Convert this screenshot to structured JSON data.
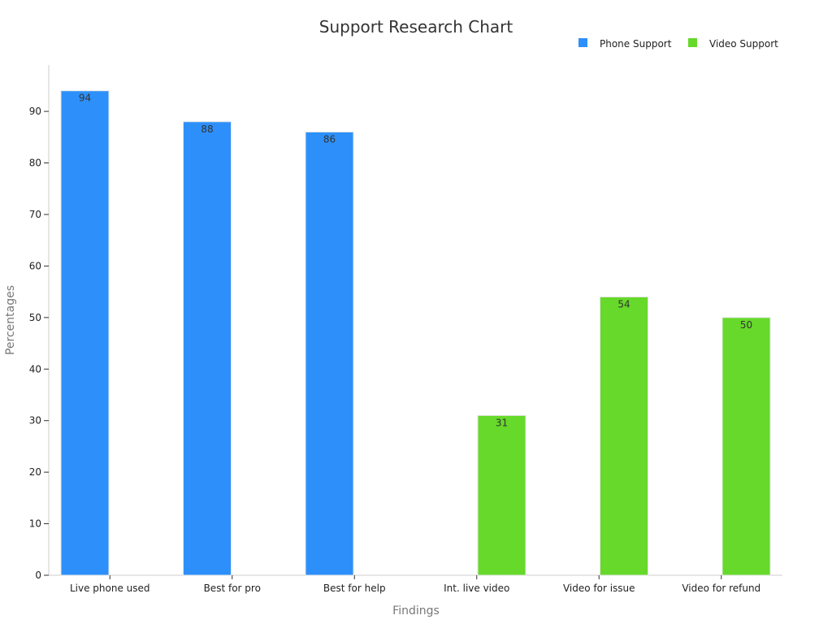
{
  "chart_data": {
    "type": "bar",
    "title": "Support Research Chart",
    "xlabel": "Findings",
    "ylabel": "Percentages",
    "ylim": [
      0,
      99
    ],
    "yticks": [
      0,
      10,
      20,
      30,
      40,
      50,
      60,
      70,
      80,
      90
    ],
    "categories": [
      "Live phone used",
      "Best for pro",
      "Best for help",
      "Int. live video",
      "Video for issue",
      "Video for refund"
    ],
    "series": [
      {
        "name": "Phone Support",
        "color": "#2d90fa",
        "values": [
          94,
          88,
          86,
          null,
          null,
          null
        ]
      },
      {
        "name": "Video Support",
        "color": "#66d92a",
        "values": [
          null,
          null,
          null,
          31,
          54,
          50
        ]
      }
    ],
    "legend_position": "top-right",
    "grid": false
  }
}
